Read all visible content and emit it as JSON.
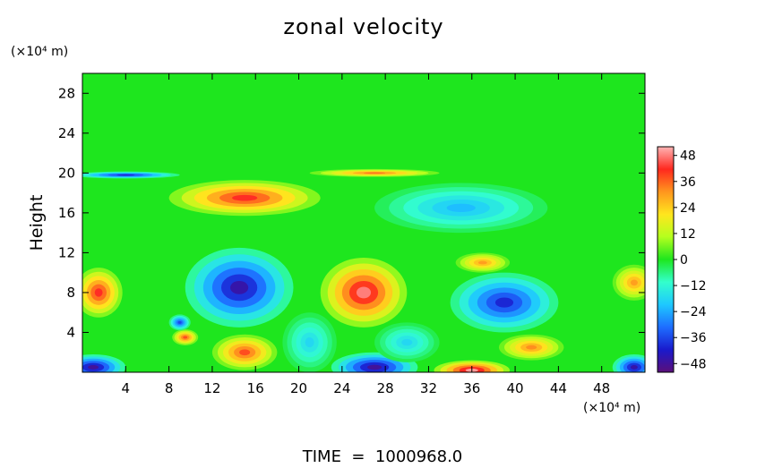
{
  "chart_data": {
    "type": "heatmap",
    "title": "zonal velocity",
    "ylabel": "Height",
    "y_unit": "(×10⁴ m)",
    "x_unit": "(×10⁴ m)",
    "xlim": [
      0,
      52
    ],
    "ylim": [
      0,
      30
    ],
    "x_ticks": [
      4,
      8,
      12,
      16,
      20,
      24,
      28,
      32,
      36,
      40,
      44,
      48
    ],
    "y_ticks": [
      4,
      8,
      12,
      16,
      20,
      24,
      28
    ],
    "colorbar": {
      "range": [
        -52,
        52
      ],
      "ticks": [
        48,
        36,
        24,
        12,
        0,
        -12,
        -24,
        -36,
        -48
      ],
      "colors": [
        "#5b0f7a",
        "#1a1acc",
        "#1e6eff",
        "#1ec8ff",
        "#33ffcc",
        "#1ee61e",
        "#b4ff1e",
        "#ffe61e",
        "#ff961e",
        "#ff281e",
        "#ffb4b4"
      ]
    },
    "background_value": 0,
    "features": [
      {
        "x": 26,
        "y": 8,
        "value": 48,
        "rx": 4,
        "ry": 3.5
      },
      {
        "x": 14.5,
        "y": 8.5,
        "value": -46,
        "rx": 5,
        "ry": 4
      },
      {
        "x": 39,
        "y": 7,
        "value": -40,
        "rx": 5,
        "ry": 3
      },
      {
        "x": 1.5,
        "y": 8,
        "value": 42,
        "rx": 2.2,
        "ry": 2.5
      },
      {
        "x": 15,
        "y": 17.5,
        "value": 42,
        "rx": 7,
        "ry": 1.8
      },
      {
        "x": 35,
        "y": 16.5,
        "value": -22,
        "rx": 8,
        "ry": 2.5
      },
      {
        "x": 15,
        "y": 2,
        "value": 38,
        "rx": 3,
        "ry": 1.8
      },
      {
        "x": 9.5,
        "y": 3.5,
        "value": 38,
        "rx": 1.2,
        "ry": 0.8
      },
      {
        "x": 41.5,
        "y": 2.5,
        "value": 32,
        "rx": 3,
        "ry": 1.3
      },
      {
        "x": 36,
        "y": 0.2,
        "value": 50,
        "rx": 3.5,
        "ry": 1
      },
      {
        "x": 27,
        "y": 0.5,
        "value": -48,
        "rx": 4,
        "ry": 1.5
      },
      {
        "x": 1,
        "y": 0.5,
        "value": -48,
        "rx": 3,
        "ry": 1.3
      },
      {
        "x": 51,
        "y": 0.5,
        "value": -46,
        "rx": 2,
        "ry": 1.3
      },
      {
        "x": 37,
        "y": 11,
        "value": 30,
        "rx": 2.5,
        "ry": 1
      },
      {
        "x": 27,
        "y": 20,
        "value": 34,
        "rx": 6,
        "ry": 0.4
      },
      {
        "x": 4,
        "y": 19.8,
        "value": -40,
        "rx": 5,
        "ry": 0.35
      },
      {
        "x": 51,
        "y": 9,
        "value": 30,
        "rx": 2,
        "ry": 1.8
      },
      {
        "x": 9,
        "y": 5,
        "value": -36,
        "rx": 1,
        "ry": 0.8
      },
      {
        "x": 21,
        "y": 3,
        "value": -18,
        "rx": 2.5,
        "ry": 3
      },
      {
        "x": 30,
        "y": 3,
        "value": -18,
        "rx": 3,
        "ry": 2
      }
    ]
  },
  "footer": {
    "time_text": "TIME  =  1000968.0"
  }
}
